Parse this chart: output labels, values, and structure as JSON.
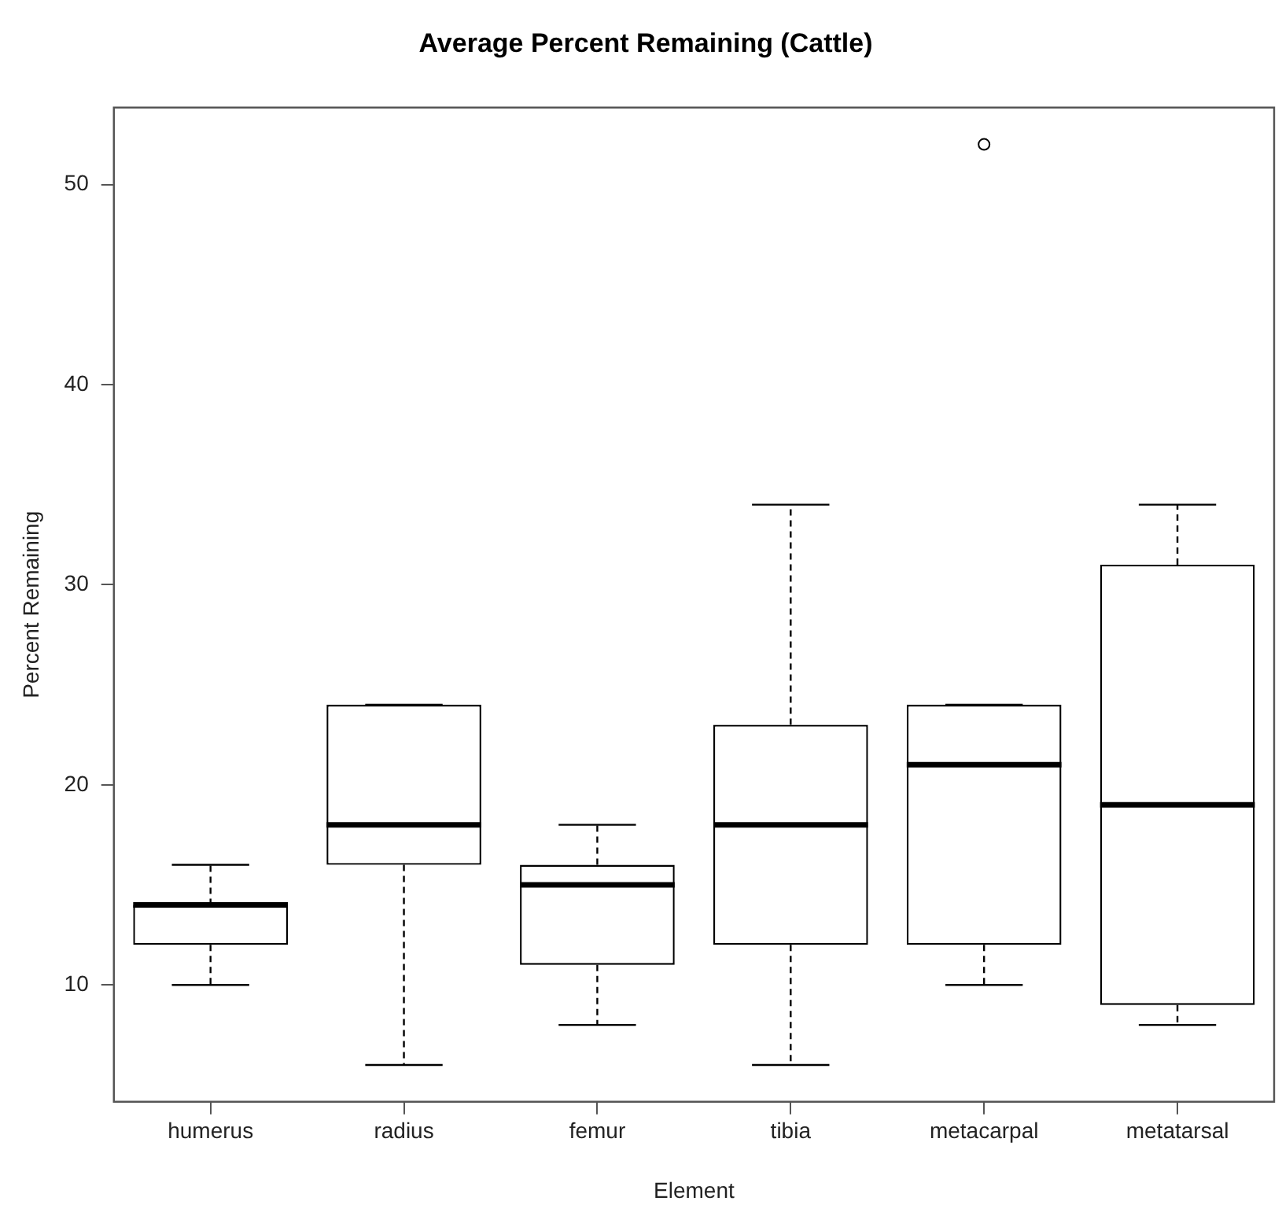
{
  "chart_data": {
    "type": "box",
    "title": "Average Percent Remaining (Cattle)",
    "xlabel": "Element",
    "ylabel": "Percent Remaining",
    "categories": [
      "humerus",
      "radius",
      "femur",
      "tibia",
      "metacarpal",
      "metatarsal"
    ],
    "boxes": [
      {
        "low": 10,
        "q1": 12,
        "median": 14,
        "q3": 14,
        "high": 16
      },
      {
        "low": 6,
        "q1": 16,
        "median": 18,
        "q3": 24,
        "high": 24
      },
      {
        "low": 8,
        "q1": 11,
        "median": 15,
        "q3": 16,
        "high": 18
      },
      {
        "low": 6,
        "q1": 12,
        "median": 18,
        "q3": 23,
        "high": 34
      },
      {
        "low": 10,
        "q1": 12,
        "median": 21,
        "q3": 24,
        "high": 24,
        "outliers": [
          52
        ]
      },
      {
        "low": 8,
        "q1": 9,
        "median": 19,
        "q3": 31,
        "high": 34
      }
    ],
    "color": "#000000",
    "ylim": [
      4.16,
      53.84
    ],
    "yticks": [
      10,
      20,
      30,
      40,
      50
    ],
    "grid": false,
    "legend": false
  }
}
